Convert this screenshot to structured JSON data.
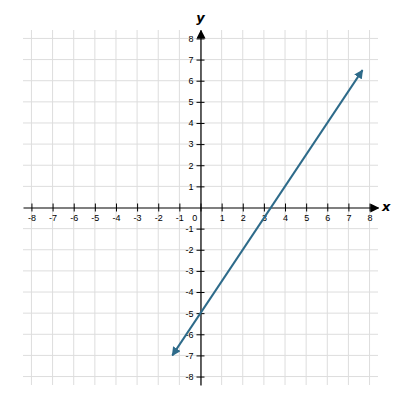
{
  "chart_data": {
    "type": "line",
    "x": [
      -1.333,
      7.667
    ],
    "values": [
      -7.0,
      6.5
    ],
    "color": "#2E6B8A",
    "marker": "arrow",
    "xlabel": "x",
    "ylabel": "y",
    "xlim": [
      -8.4,
      8.4
    ],
    "ylim": [
      -8.4,
      8.4
    ],
    "xticks": [
      -8,
      -7,
      -6,
      -5,
      -4,
      -3,
      -2,
      -1,
      0,
      1,
      2,
      3,
      4,
      5,
      6,
      7,
      8
    ],
    "yticks": [
      -8,
      -7,
      -6,
      -5,
      -4,
      -3,
      -2,
      -1,
      1,
      2,
      3,
      4,
      5,
      6,
      7,
      8
    ],
    "grid": true
  }
}
